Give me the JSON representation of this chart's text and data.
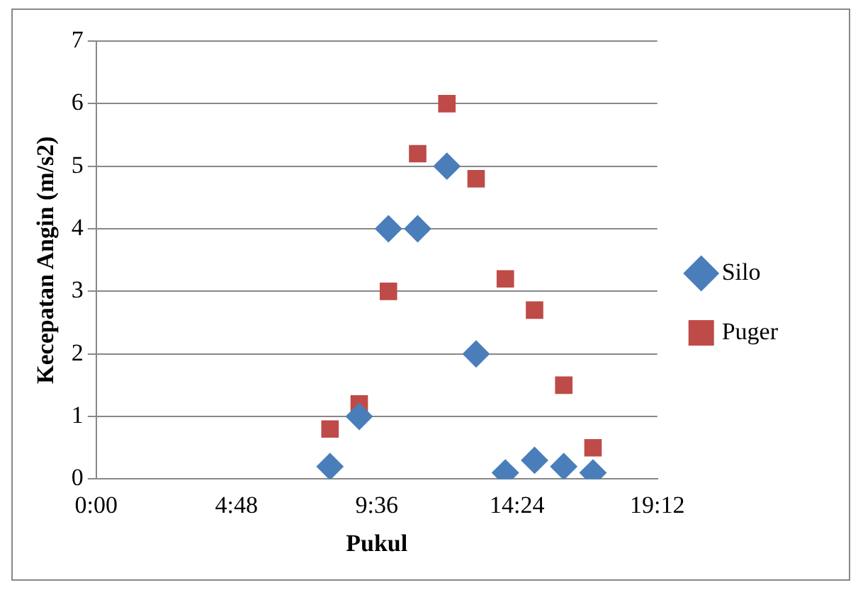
{
  "chart_data": {
    "type": "scatter",
    "xlabel": "Pukul",
    "ylabel": "Kecepatan Angin (m/s2)",
    "xlim": [
      0,
      19.2
    ],
    "xticks": [
      {
        "value": 0,
        "label": "0:00"
      },
      {
        "value": 4.8,
        "label": "4:48"
      },
      {
        "value": 9.6,
        "label": "9:36"
      },
      {
        "value": 14.4,
        "label": "14:24"
      },
      {
        "value": 19.2,
        "label": "19:12"
      }
    ],
    "ylim": [
      0,
      7
    ],
    "yticks": [
      0,
      1,
      2,
      3,
      4,
      5,
      6,
      7
    ],
    "grid": "y",
    "legend": "right",
    "series": [
      {
        "name": "Silo",
        "color": "#4a7ebb",
        "marker": "diamond",
        "x": [
          8,
          9,
          10,
          11,
          12,
          13,
          14,
          15,
          16,
          17
        ],
        "values": [
          0.2,
          1,
          4,
          4,
          5,
          2,
          0.1,
          0.3,
          0.2,
          0.1
        ]
      },
      {
        "name": "Puger",
        "color": "#be4b48",
        "marker": "square",
        "x": [
          8,
          9,
          10,
          11,
          12,
          13,
          14,
          15,
          16,
          17
        ],
        "values": [
          0.8,
          1.2,
          3,
          5.2,
          6,
          4.8,
          3.2,
          2.7,
          1.5,
          0.5
        ]
      }
    ]
  }
}
